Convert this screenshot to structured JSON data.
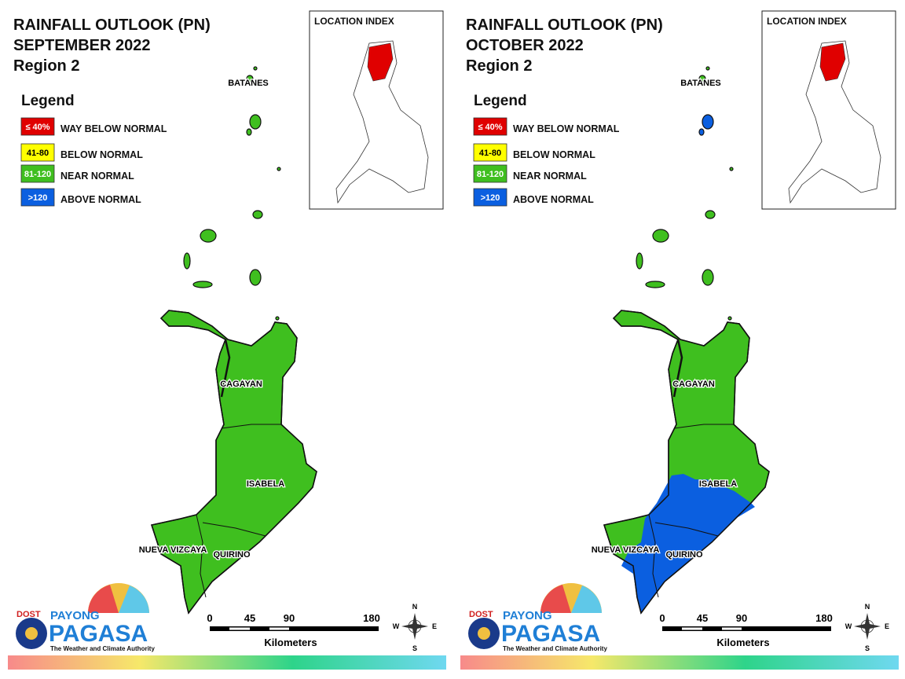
{
  "panels": [
    {
      "title": [
        "RAINFALL OUTLOOK (PN)",
        "SEPTEMBER 2022",
        "Region 2"
      ],
      "legend": {
        "title": "Legend",
        "items": [
          {
            "key": "≤ 40%",
            "label": "WAY BELOW NORMAL",
            "color": "#e00000"
          },
          {
            "key": "41-80",
            "label": "BELOW NORMAL",
            "color": "#ffff00"
          },
          {
            "key": "81-120",
            "label": "NEAR NORMAL",
            "color": "#3fbf1f"
          },
          {
            "key": ">120",
            "label": "ABOVE NORMAL",
            "color": "#0b5fe0"
          }
        ]
      },
      "location_index": "LOCATION INDEX",
      "provinces": [
        "BATANES",
        "CAGAYAN",
        "ISABELA",
        "NUEVA VIZCAYA",
        "QUIRINO"
      ],
      "scale": {
        "ticks": [
          "0",
          "45",
          "90",
          "180"
        ],
        "unit": "Kilometers"
      },
      "compass": [
        "N",
        "E",
        "S",
        "W"
      ],
      "logo": {
        "agency": "DOST",
        "brand": "PAYONG",
        "name": "PAGASA",
        "tagline": "The Weather and Climate Authority"
      }
    },
    {
      "title": [
        "RAINFALL OUTLOOK (PN)",
        "OCTOBER 2022",
        "Region 2"
      ],
      "legend": {
        "title": "Legend",
        "items": [
          {
            "key": "≤ 40%",
            "label": "WAY BELOW NORMAL",
            "color": "#e00000"
          },
          {
            "key": "41-80",
            "label": "BELOW NORMAL",
            "color": "#ffff00"
          },
          {
            "key": "81-120",
            "label": "NEAR NORMAL",
            "color": "#3fbf1f"
          },
          {
            "key": ">120",
            "label": "ABOVE NORMAL",
            "color": "#0b5fe0"
          }
        ]
      },
      "location_index": "LOCATION INDEX",
      "provinces": [
        "BATANES",
        "CAGAYAN",
        "ISABELA",
        "NUEVA VIZCAYA",
        "QUIRINO"
      ],
      "scale": {
        "ticks": [
          "0",
          "45",
          "90",
          "180"
        ],
        "unit": "Kilometers"
      },
      "compass": [
        "N",
        "E",
        "S",
        "W"
      ],
      "logo": {
        "agency": "DOST",
        "brand": "PAYONG",
        "name": "PAGASA",
        "tagline": "The Weather and Climate Authority"
      }
    }
  ]
}
